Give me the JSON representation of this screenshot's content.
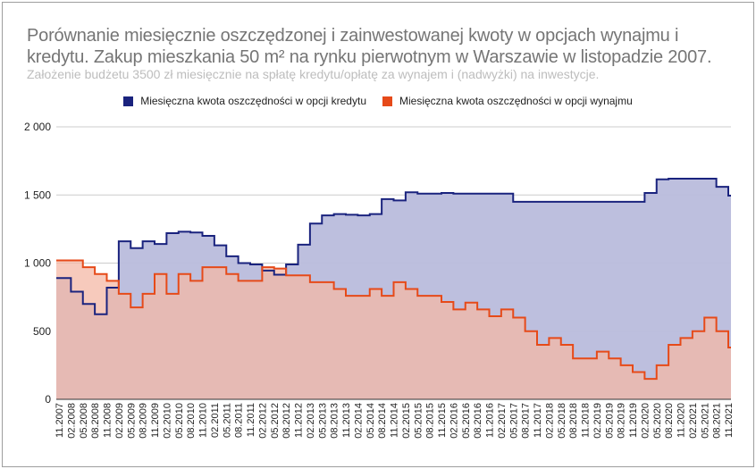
{
  "chart_data": {
    "type": "area",
    "step": true,
    "title": "Porównanie miesięcznie oszczędzonej i zainwestowanej kwoty w opcjach wynajmu i kredytu. Zakup mieszkania 50 m² na rynku pierwotnym w Warszawie w listopadzie 2007.",
    "subtitle": "Założenie budżetu 3500 zł miesięcznie na spłatę kredytu/opłatę za wynajem i (nadwyżki) na inwestycje.",
    "xlabel": "",
    "ylabel": "",
    "ylim": [
      0,
      2000
    ],
    "yticks": [
      "0",
      "500",
      "1 000",
      "1 500",
      "2 000"
    ],
    "grid": true,
    "legend_position": "top",
    "categories": [
      "11.2007",
      "02.2008",
      "05.2008",
      "08.2008",
      "11.2008",
      "02.2009",
      "05.2009",
      "08.2009",
      "11.2009",
      "02.2010",
      "05.2010",
      "08.2010",
      "11.2010",
      "02.2011",
      "05.2011",
      "08.2011",
      "11.2011",
      "02.2012",
      "05.2012",
      "08.2012",
      "11.2012",
      "02.2013",
      "05.2013",
      "08.2013",
      "11.2013",
      "02.2014",
      "05.2014",
      "08.2014",
      "11.2014",
      "02.2015",
      "05.2015",
      "08.2015",
      "11.2015",
      "02.2016",
      "05.2016",
      "08.2016",
      "11.2016",
      "02.2017",
      "05.2017",
      "08.2017",
      "11.2017",
      "02.2018",
      "05.2018",
      "08.2018",
      "11.2018",
      "02.2019",
      "05.2019",
      "08.2019",
      "11.2019",
      "02.2020",
      "05.2020",
      "08.2020",
      "11.2020",
      "02.2021",
      "05.2021",
      "08.2021",
      "11.2021"
    ],
    "series": [
      {
        "name": "Miesięczna kwota oszczędności w opcji kredytu",
        "color": "#1a237e",
        "fill": "#b9bcdc",
        "values": [
          890,
          790,
          700,
          625,
          820,
          1160,
          1110,
          1160,
          1140,
          1220,
          1230,
          1225,
          1200,
          1130,
          1050,
          1000,
          990,
          945,
          915,
          990,
          1135,
          1290,
          1350,
          1360,
          1355,
          1350,
          1360,
          1470,
          1460,
          1520,
          1510,
          1510,
          1515,
          1510,
          1510,
          1510,
          1510,
          1510,
          1450,
          1450,
          1450,
          1450,
          1450,
          1450,
          1450,
          1450,
          1450,
          1450,
          1450,
          1515,
          1615,
          1620,
          1620,
          1620,
          1620,
          1560,
          1495
        ]
      },
      {
        "name": "Miesięczna kwota oszczędności w opcji wynajmu",
        "color": "#e64a19",
        "fill": "#f4b8a6",
        "values": [
          1020,
          1020,
          970,
          920,
          870,
          775,
          675,
          775,
          920,
          775,
          920,
          870,
          970,
          970,
          920,
          870,
          870,
          970,
          960,
          910,
          910,
          860,
          860,
          810,
          760,
          760,
          810,
          760,
          860,
          810,
          760,
          760,
          715,
          660,
          710,
          660,
          610,
          660,
          600,
          500,
          400,
          450,
          400,
          300,
          300,
          350,
          300,
          250,
          200,
          150,
          250,
          400,
          450,
          500,
          600,
          500,
          380
        ]
      }
    ]
  }
}
